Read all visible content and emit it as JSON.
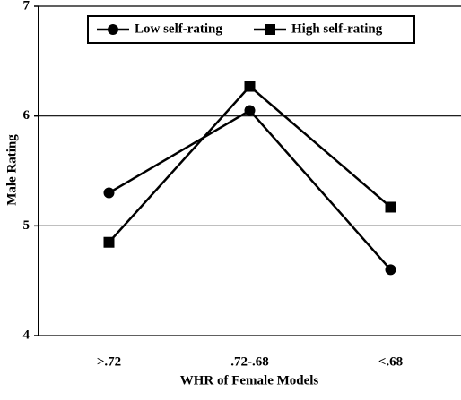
{
  "chart_data": {
    "type": "line",
    "x_label": "WHR of Female Models",
    "y_label": "Male Rating",
    "categories": [
      ">.72",
      ".72-.68",
      "<.68"
    ],
    "series": [
      {
        "name": "Low self-rating",
        "color": "#000000",
        "marker": "circle",
        "values": [
          5.3,
          6.05,
          4.6
        ]
      },
      {
        "name": "High self-rating",
        "color": "#000000",
        "marker": "square",
        "values": [
          4.85,
          6.27,
          5.17
        ]
      }
    ],
    "ylim": [
      4,
      7
    ],
    "yticks": [
      4,
      5,
      6,
      7
    ],
    "grid": true,
    "legend": "top"
  }
}
